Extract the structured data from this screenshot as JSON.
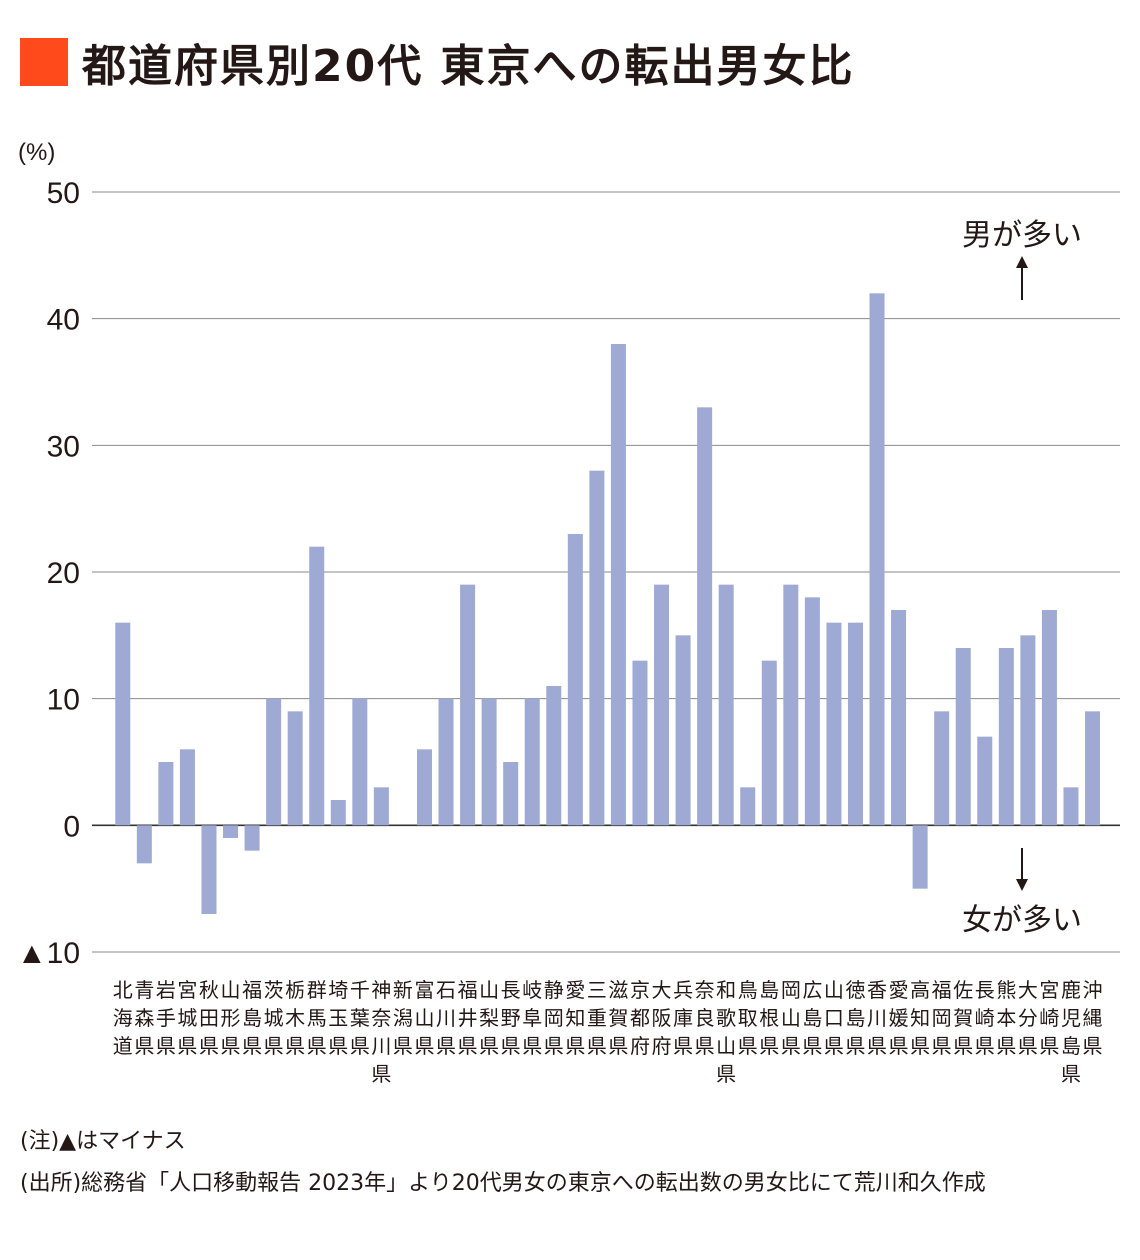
{
  "title": "都道府県別20代 東京への転出男女比",
  "accent_color": "#ff4a1c",
  "bar_color": "#9eaad4",
  "chart_data": {
    "type": "bar",
    "title": "都道府県別20代 東京への転出男女比",
    "unit_label": "(%)",
    "ylim": [
      -10,
      50
    ],
    "y_ticks": [
      {
        "value": 50,
        "label": "50"
      },
      {
        "value": 40,
        "label": "40"
      },
      {
        "value": 30,
        "label": "30"
      },
      {
        "value": 20,
        "label": "20"
      },
      {
        "value": 10,
        "label": "10"
      },
      {
        "value": 0,
        "label": "0"
      },
      {
        "value": -10,
        "label": "▲10"
      }
    ],
    "grid": true,
    "annotations": {
      "upper": "男が多い",
      "lower": "女が多い"
    },
    "categories": [
      "北海道",
      "青森県",
      "岩手県",
      "宮城県",
      "秋田県",
      "山形県",
      "福島県",
      "茨城県",
      "栃木県",
      "群馬県",
      "埼玉県",
      "千葉県",
      "神奈川県",
      "新潟県",
      "富山県",
      "石川県",
      "福井県",
      "山梨県",
      "長野県",
      "岐阜県",
      "静岡県",
      "愛知県",
      "三重県",
      "滋賀県",
      "京都府",
      "大阪府",
      "兵庫県",
      "奈良県",
      "和歌山県",
      "鳥取県",
      "島根県",
      "岡山県",
      "広島県",
      "山口県",
      "徳島県",
      "香川県",
      "愛媛県",
      "高知県",
      "福岡県",
      "佐賀県",
      "長崎県",
      "熊本県",
      "大分県",
      "宮崎県",
      "鹿児島県",
      "沖縄県"
    ],
    "values": [
      16,
      -3,
      5,
      6,
      -7,
      -1,
      -2,
      10,
      9,
      22,
      2,
      10,
      3,
      0,
      6,
      10,
      19,
      10,
      5,
      10,
      11,
      23,
      28,
      38,
      13,
      19,
      15,
      33,
      19,
      3,
      13,
      19,
      18,
      16,
      16,
      42,
      17,
      -5,
      9,
      14,
      7,
      14,
      15,
      17,
      3,
      9
    ]
  },
  "notes": {
    "note": "(注)▲はマイナス",
    "source": "(出所)総務省「人口移動報告 2023年」より20代男女の東京への転出数の男女比にて荒川和久作成"
  }
}
